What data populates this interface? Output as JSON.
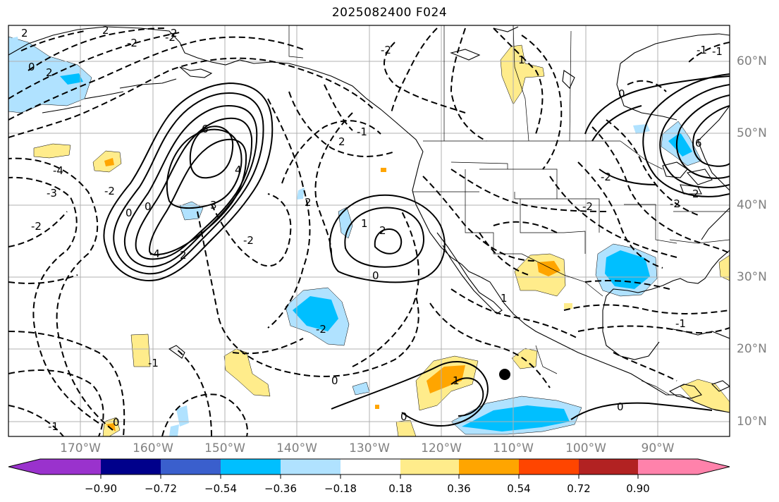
{
  "title": "2025082400 F024",
  "map": {
    "lat_labels": [
      "60°N",
      "50°N",
      "40°N",
      "30°N",
      "20°N",
      "10°N"
    ],
    "lon_labels": [
      "170°W",
      "160°W",
      "150°W",
      "140°W",
      "130°W",
      "120°W",
      "110°W",
      "100°W",
      "90°W"
    ],
    "extent": {
      "lon_min": -180,
      "lon_max": -80,
      "lat_min": 8,
      "lat_max": 65
    },
    "contour_labels": [
      "2",
      "0",
      "2",
      "-2",
      "-2",
      "2",
      "2",
      "-2",
      "-4",
      "0",
      "6",
      "4",
      "3",
      "2",
      "0",
      "-4",
      "-3",
      "-2",
      "-2",
      "-2",
      "2",
      "1",
      "2",
      "-2",
      "-1",
      "2",
      "0",
      "-2",
      "-2",
      "2",
      "-2",
      "6",
      "0",
      "-1",
      "-1",
      "1",
      "-1",
      "0",
      "1",
      "0",
      "-1",
      "0",
      "0",
      "1",
      "-1"
    ],
    "marker": {
      "lon": -110.8,
      "lat": 16.5,
      "color": "#000000"
    }
  },
  "colorbar": {
    "colors": [
      "#9a32cd",
      "#00008b",
      "#3a5fcd",
      "#00bfff",
      "#b0e2ff",
      "#ffffff",
      "#ffec8b",
      "#ffa500",
      "#ff4500",
      "#b22222",
      "#ff82ab"
    ],
    "tick_labels": [
      "−0.90",
      "−0.72",
      "−0.54",
      "−0.36",
      "−0.18",
      "0.18",
      "0.36",
      "0.54",
      "0.72",
      "0.90"
    ]
  }
}
